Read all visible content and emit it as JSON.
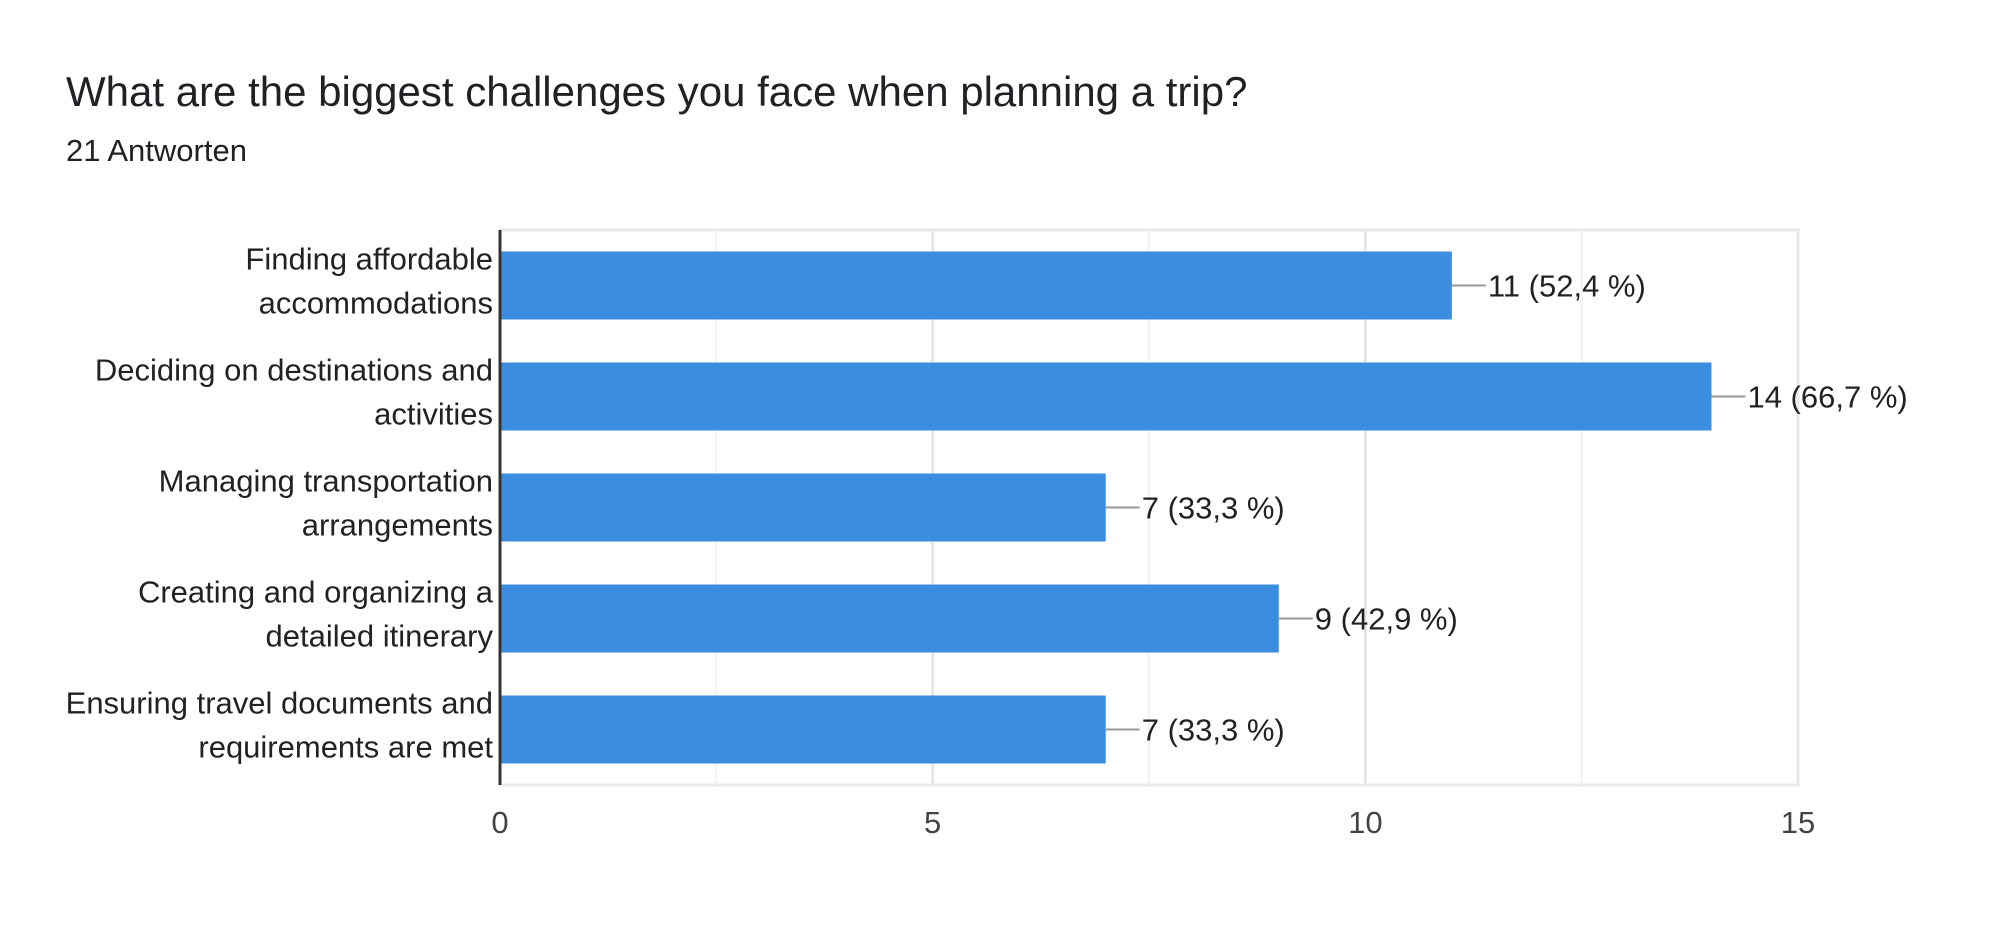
{
  "title": "What are the biggest challenges you face when planning a trip?",
  "subtitle": "21 Antworten",
  "chart_data": {
    "type": "bar",
    "orientation": "horizontal",
    "title": "What are the biggest challenges you face when planning a trip?",
    "subtitle": "21 Antworten",
    "categories": [
      [
        "Finding affordable",
        "accommodations"
      ],
      [
        "Deciding on destinations and",
        "activities"
      ],
      [
        "Managing transportation",
        "arrangements"
      ],
      [
        "Creating and organizing a",
        "detailed itinerary"
      ],
      [
        "Ensuring travel documents and",
        "requirements are met"
      ]
    ],
    "values": [
      11,
      14,
      7,
      9,
      7
    ],
    "data_labels": [
      "11 (52,4 %)",
      "14 (66,7 %)",
      "7 (33,3 %)",
      "9 (42,9 %)",
      "7 (33,3 %)"
    ],
    "xlim": [
      0,
      15
    ],
    "x_ticks": [
      0,
      5,
      10,
      15
    ],
    "grid": true,
    "bar_color": "#3b8ddf"
  }
}
